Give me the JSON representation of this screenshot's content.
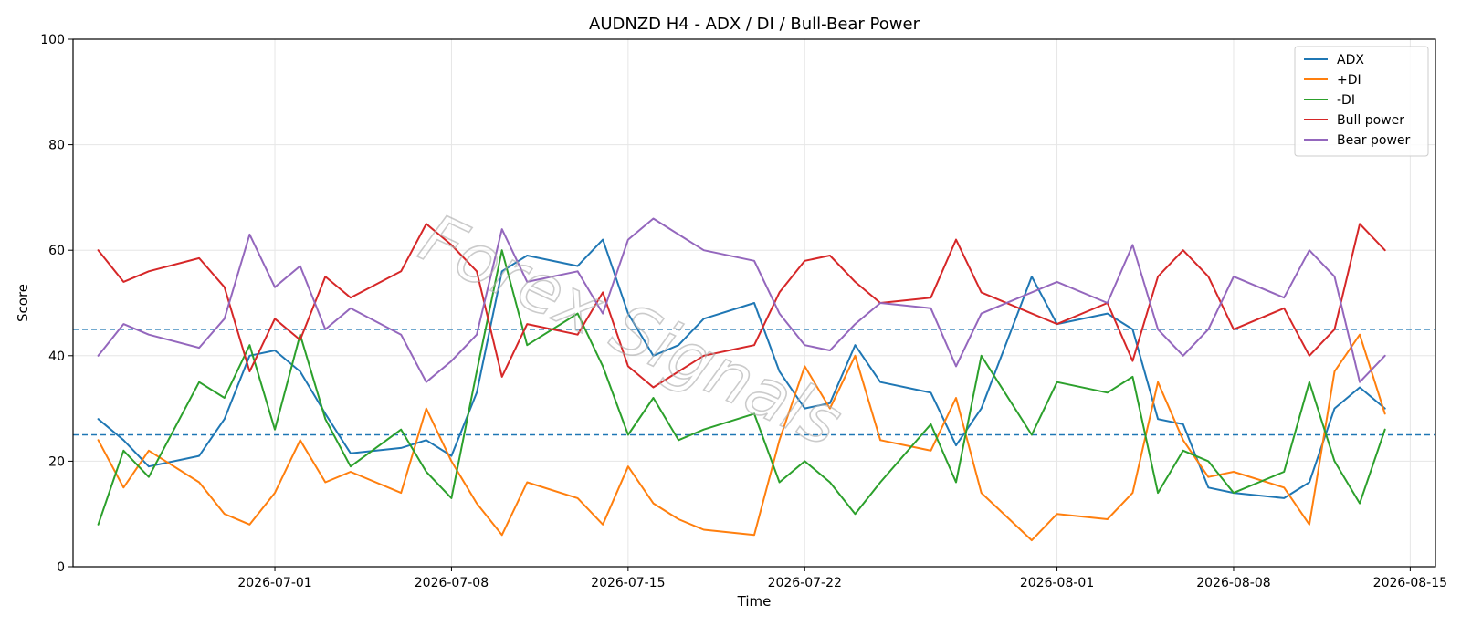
{
  "chart_data": {
    "type": "line",
    "title": "AUDNZD H4 - ADX / DI / Bull-Bear Power",
    "xlabel": "Time",
    "ylabel": "Score",
    "ylim": [
      0,
      100
    ],
    "xlim": [
      "2026-06-23",
      "2026-08-16"
    ],
    "x_ticks": [
      "2026-07-01",
      "2026-07-08",
      "2026-07-15",
      "2026-07-22",
      "2026-08-01",
      "2026-08-08",
      "2026-08-15"
    ],
    "y_ticks": [
      0,
      20,
      40,
      60,
      80,
      100
    ],
    "grid": true,
    "legend_position": "top-right",
    "reference_lines": [
      {
        "y": 45,
        "style": "dashed",
        "color": "#1f77b4"
      },
      {
        "y": 25,
        "style": "dashed",
        "color": "#1f77b4"
      }
    ],
    "watermark": "Forex Signals",
    "series": [
      {
        "name": "ADX",
        "color": "#1f77b4",
        "points": [
          [
            "2026-06-24",
            28
          ],
          [
            "2026-06-25",
            24
          ],
          [
            "2026-06-26",
            19
          ],
          [
            "2026-06-28",
            21
          ],
          [
            "2026-06-29",
            28
          ],
          [
            "2026-06-30",
            40
          ],
          [
            "2026-07-01",
            41
          ],
          [
            "2026-07-02",
            37
          ],
          [
            "2026-07-03",
            29
          ],
          [
            "2026-07-04",
            21.5
          ],
          [
            "2026-07-06",
            22.5
          ],
          [
            "2026-07-07",
            24
          ],
          [
            "2026-07-08",
            21
          ],
          [
            "2026-07-09",
            33
          ],
          [
            "2026-07-10",
            56
          ],
          [
            "2026-07-11",
            59
          ],
          [
            "2026-07-13",
            57
          ],
          [
            "2026-07-14",
            62
          ],
          [
            "2026-07-15",
            48
          ],
          [
            "2026-07-16",
            40
          ],
          [
            "2026-07-17",
            42
          ],
          [
            "2026-07-18",
            47
          ],
          [
            "2026-07-20",
            50
          ],
          [
            "2026-07-21",
            37
          ],
          [
            "2026-07-22",
            30
          ],
          [
            "2026-07-23",
            31
          ],
          [
            "2026-07-24",
            42
          ],
          [
            "2026-07-25",
            35
          ],
          [
            "2026-07-27",
            33
          ],
          [
            "2026-07-28",
            23
          ],
          [
            "2026-07-29",
            30
          ],
          [
            "2026-07-31",
            55
          ],
          [
            "2026-08-01",
            46
          ],
          [
            "2026-08-03",
            48
          ],
          [
            "2026-08-04",
            45
          ],
          [
            "2026-08-05",
            28
          ],
          [
            "2026-08-06",
            27
          ],
          [
            "2026-08-07",
            15
          ],
          [
            "2026-08-08",
            14
          ],
          [
            "2026-08-10",
            13
          ],
          [
            "2026-08-11",
            16
          ],
          [
            "2026-08-12",
            30
          ],
          [
            "2026-08-13",
            34
          ],
          [
            "2026-08-14",
            30
          ]
        ]
      },
      {
        "name": "+DI",
        "color": "#ff7f0e",
        "points": [
          [
            "2026-06-24",
            24
          ],
          [
            "2026-06-25",
            15
          ],
          [
            "2026-06-26",
            22
          ],
          [
            "2026-06-28",
            16
          ],
          [
            "2026-06-29",
            10
          ],
          [
            "2026-06-30",
            8
          ],
          [
            "2026-07-01",
            14
          ],
          [
            "2026-07-02",
            24
          ],
          [
            "2026-07-03",
            16
          ],
          [
            "2026-07-04",
            18
          ],
          [
            "2026-07-06",
            14
          ],
          [
            "2026-07-07",
            30
          ],
          [
            "2026-07-08",
            20
          ],
          [
            "2026-07-09",
            12
          ],
          [
            "2026-07-10",
            6
          ],
          [
            "2026-07-11",
            16
          ],
          [
            "2026-07-13",
            13
          ],
          [
            "2026-07-14",
            8
          ],
          [
            "2026-07-15",
            19
          ],
          [
            "2026-07-16",
            12
          ],
          [
            "2026-07-17",
            9
          ],
          [
            "2026-07-18",
            7
          ],
          [
            "2026-07-20",
            6
          ],
          [
            "2026-07-21",
            24
          ],
          [
            "2026-07-22",
            38
          ],
          [
            "2026-07-23",
            30
          ],
          [
            "2026-07-24",
            40
          ],
          [
            "2026-07-25",
            24
          ],
          [
            "2026-07-27",
            22
          ],
          [
            "2026-07-28",
            32
          ],
          [
            "2026-07-29",
            14
          ],
          [
            "2026-07-31",
            5
          ],
          [
            "2026-08-01",
            10
          ],
          [
            "2026-08-03",
            9
          ],
          [
            "2026-08-04",
            14
          ],
          [
            "2026-08-05",
            35
          ],
          [
            "2026-08-06",
            24
          ],
          [
            "2026-08-07",
            17
          ],
          [
            "2026-08-08",
            18
          ],
          [
            "2026-08-10",
            15
          ],
          [
            "2026-08-11",
            8
          ],
          [
            "2026-08-12",
            37
          ],
          [
            "2026-08-13",
            44
          ],
          [
            "2026-08-14",
            29
          ]
        ]
      },
      {
        "name": "-DI",
        "color": "#2ca02c",
        "points": [
          [
            "2026-06-24",
            8
          ],
          [
            "2026-06-25",
            22
          ],
          [
            "2026-06-26",
            17
          ],
          [
            "2026-06-28",
            35
          ],
          [
            "2026-06-29",
            32
          ],
          [
            "2026-06-30",
            42
          ],
          [
            "2026-07-01",
            26
          ],
          [
            "2026-07-02",
            44
          ],
          [
            "2026-07-03",
            28
          ],
          [
            "2026-07-04",
            19
          ],
          [
            "2026-07-06",
            26
          ],
          [
            "2026-07-07",
            18
          ],
          [
            "2026-07-08",
            13
          ],
          [
            "2026-07-09",
            37
          ],
          [
            "2026-07-10",
            60
          ],
          [
            "2026-07-11",
            42
          ],
          [
            "2026-07-13",
            48
          ],
          [
            "2026-07-14",
            38
          ],
          [
            "2026-07-15",
            25
          ],
          [
            "2026-07-16",
            32
          ],
          [
            "2026-07-17",
            24
          ],
          [
            "2026-07-18",
            26
          ],
          [
            "2026-07-20",
            29
          ],
          [
            "2026-07-21",
            16
          ],
          [
            "2026-07-22",
            20
          ],
          [
            "2026-07-23",
            16
          ],
          [
            "2026-07-24",
            10
          ],
          [
            "2026-07-25",
            16
          ],
          [
            "2026-07-27",
            27
          ],
          [
            "2026-07-28",
            16
          ],
          [
            "2026-07-29",
            40
          ],
          [
            "2026-07-31",
            25
          ],
          [
            "2026-08-01",
            35
          ],
          [
            "2026-08-03",
            33
          ],
          [
            "2026-08-04",
            36
          ],
          [
            "2026-08-05",
            14
          ],
          [
            "2026-08-06",
            22
          ],
          [
            "2026-08-07",
            20
          ],
          [
            "2026-08-08",
            14
          ],
          [
            "2026-08-10",
            18
          ],
          [
            "2026-08-11",
            35
          ],
          [
            "2026-08-12",
            20
          ],
          [
            "2026-08-13",
            12
          ],
          [
            "2026-08-14",
            26
          ]
        ]
      },
      {
        "name": "Bull power",
        "color": "#d62728",
        "points": [
          [
            "2026-06-24",
            60
          ],
          [
            "2026-06-25",
            54
          ],
          [
            "2026-06-26",
            56
          ],
          [
            "2026-06-28",
            58.5
          ],
          [
            "2026-06-29",
            53
          ],
          [
            "2026-06-30",
            37
          ],
          [
            "2026-07-01",
            47
          ],
          [
            "2026-07-02",
            43
          ],
          [
            "2026-07-03",
            55
          ],
          [
            "2026-07-04",
            51
          ],
          [
            "2026-07-06",
            56
          ],
          [
            "2026-07-07",
            65
          ],
          [
            "2026-07-08",
            61
          ],
          [
            "2026-07-09",
            56
          ],
          [
            "2026-07-10",
            36
          ],
          [
            "2026-07-11",
            46
          ],
          [
            "2026-07-13",
            44
          ],
          [
            "2026-07-14",
            52
          ],
          [
            "2026-07-15",
            38
          ],
          [
            "2026-07-16",
            34
          ],
          [
            "2026-07-17",
            37
          ],
          [
            "2026-07-18",
            40
          ],
          [
            "2026-07-20",
            42
          ],
          [
            "2026-07-21",
            52
          ],
          [
            "2026-07-22",
            58
          ],
          [
            "2026-07-23",
            59
          ],
          [
            "2026-07-24",
            54
          ],
          [
            "2026-07-25",
            50
          ],
          [
            "2026-07-27",
            51
          ],
          [
            "2026-07-28",
            62
          ],
          [
            "2026-07-29",
            52
          ],
          [
            "2026-07-31",
            48
          ],
          [
            "2026-08-01",
            46
          ],
          [
            "2026-08-03",
            50
          ],
          [
            "2026-08-04",
            39
          ],
          [
            "2026-08-05",
            55
          ],
          [
            "2026-08-06",
            60
          ],
          [
            "2026-08-07",
            55
          ],
          [
            "2026-08-08",
            45
          ],
          [
            "2026-08-10",
            49
          ],
          [
            "2026-08-11",
            40
          ],
          [
            "2026-08-12",
            45
          ],
          [
            "2026-08-13",
            65
          ],
          [
            "2026-08-14",
            60
          ]
        ]
      },
      {
        "name": "Bear power",
        "color": "#9467bd",
        "points": [
          [
            "2026-06-24",
            40
          ],
          [
            "2026-06-25",
            46
          ],
          [
            "2026-06-26",
            44
          ],
          [
            "2026-06-28",
            41.5
          ],
          [
            "2026-06-29",
            47
          ],
          [
            "2026-06-30",
            63
          ],
          [
            "2026-07-01",
            53
          ],
          [
            "2026-07-02",
            57
          ],
          [
            "2026-07-03",
            45
          ],
          [
            "2026-07-04",
            49
          ],
          [
            "2026-07-06",
            44
          ],
          [
            "2026-07-07",
            35
          ],
          [
            "2026-07-08",
            39
          ],
          [
            "2026-07-09",
            44
          ],
          [
            "2026-07-10",
            64
          ],
          [
            "2026-07-11",
            54
          ],
          [
            "2026-07-13",
            56
          ],
          [
            "2026-07-14",
            48
          ],
          [
            "2026-07-15",
            62
          ],
          [
            "2026-07-16",
            66
          ],
          [
            "2026-07-17",
            63
          ],
          [
            "2026-07-18",
            60
          ],
          [
            "2026-07-20",
            58
          ],
          [
            "2026-07-21",
            48
          ],
          [
            "2026-07-22",
            42
          ],
          [
            "2026-07-23",
            41
          ],
          [
            "2026-07-24",
            46
          ],
          [
            "2026-07-25",
            50
          ],
          [
            "2026-07-27",
            49
          ],
          [
            "2026-07-28",
            38
          ],
          [
            "2026-07-29",
            48
          ],
          [
            "2026-07-31",
            52
          ],
          [
            "2026-08-01",
            54
          ],
          [
            "2026-08-03",
            50
          ],
          [
            "2026-08-04",
            61
          ],
          [
            "2026-08-05",
            45
          ],
          [
            "2026-08-06",
            40
          ],
          [
            "2026-08-07",
            45
          ],
          [
            "2026-08-08",
            55
          ],
          [
            "2026-08-10",
            51
          ],
          [
            "2026-08-11",
            60
          ],
          [
            "2026-08-12",
            55
          ],
          [
            "2026-08-13",
            35
          ],
          [
            "2026-08-14",
            40
          ]
        ]
      }
    ]
  }
}
